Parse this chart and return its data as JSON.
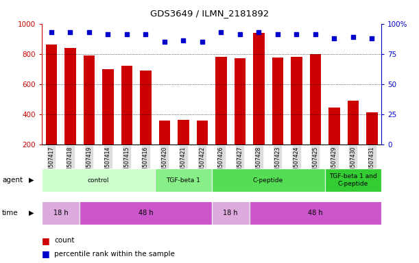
{
  "title": "GDS3649 / ILMN_2181892",
  "samples": [
    "GSM507417",
    "GSM507418",
    "GSM507419",
    "GSM507414",
    "GSM507415",
    "GSM507416",
    "GSM507420",
    "GSM507421",
    "GSM507422",
    "GSM507426",
    "GSM507427",
    "GSM507428",
    "GSM507423",
    "GSM507424",
    "GSM507425",
    "GSM507429",
    "GSM507430",
    "GSM507431"
  ],
  "counts": [
    860,
    840,
    790,
    700,
    720,
    690,
    360,
    365,
    360,
    780,
    770,
    940,
    775,
    780,
    800,
    445,
    490,
    415
  ],
  "percentile_ranks": [
    93,
    93,
    93,
    91,
    91,
    91,
    85,
    86,
    85,
    93,
    91,
    93,
    91,
    91,
    91,
    88,
    89,
    88
  ],
  "ylim_left": [
    200,
    1000
  ],
  "ylim_right": [
    0,
    100
  ],
  "yticks_left": [
    200,
    400,
    600,
    800,
    1000
  ],
  "yticks_right": [
    0,
    25,
    50,
    75,
    100
  ],
  "bar_color": "#cc0000",
  "scatter_color": "#0000cc",
  "agent_groups": [
    {
      "label": "control",
      "start": 0,
      "end": 6,
      "color": "#ccffcc"
    },
    {
      "label": "TGF-beta 1",
      "start": 6,
      "end": 9,
      "color": "#88ee88"
    },
    {
      "label": "C-peptide",
      "start": 9,
      "end": 15,
      "color": "#55dd55"
    },
    {
      "label": "TGF-beta 1 and\nC-peptide",
      "start": 15,
      "end": 18,
      "color": "#33cc33"
    }
  ],
  "time_groups": [
    {
      "label": "18 h",
      "start": 0,
      "end": 2,
      "color": "#ddaadd"
    },
    {
      "label": "48 h",
      "start": 2,
      "end": 9,
      "color": "#cc55cc"
    },
    {
      "label": "18 h",
      "start": 9,
      "end": 11,
      "color": "#ddaadd"
    },
    {
      "label": "48 h",
      "start": 11,
      "end": 18,
      "color": "#cc55cc"
    }
  ],
  "background_color": "#ffffff",
  "tick_label_color_left": "#cc0000",
  "tick_label_color_right": "#0000cc",
  "xlabel_bg": "#dddddd"
}
